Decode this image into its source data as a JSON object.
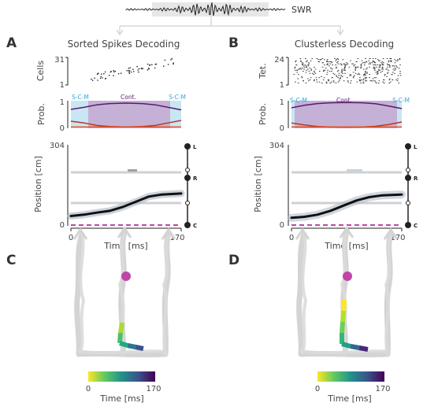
{
  "swr": {
    "label": "SWR"
  },
  "panels": {
    "A": {
      "letter": "A",
      "title": "Sorted Spikes Decoding",
      "raster_ylabel": "Cells",
      "raster_yticks": [
        "31",
        "1"
      ]
    },
    "B": {
      "letter": "B",
      "title": "Clusterless Decoding",
      "raster_ylabel": "Tet.",
      "raster_yticks": [
        "24",
        "1"
      ]
    },
    "C": {
      "letter": "C"
    },
    "D": {
      "letter": "D"
    }
  },
  "prob": {
    "ylabel": "Prob.",
    "yticks": [
      "1",
      "0"
    ],
    "state_labels": {
      "left": "S-C-M",
      "mid": "Cont.",
      "right": "S-C-M"
    }
  },
  "position": {
    "ylabel": "Position [cm]",
    "yticks": [
      "304",
      "0"
    ],
    "xlabel": "Time [ms]",
    "xticks": [
      "0",
      "170"
    ],
    "track_nodes": [
      "L",
      "R",
      "C"
    ]
  },
  "colorbar": {
    "ticks": [
      "0",
      "170"
    ],
    "label": "Time [ms]",
    "colormap": "viridis"
  },
  "colors": {
    "continuous": "#5a1a6e",
    "continuous_fill": "#c5b1d6",
    "fragmented": "#b03a2e",
    "stationary": "#e8501e",
    "scm_fill": "#c9e6f3",
    "scm_text": "#33a8d8",
    "magenta": "#c045a8",
    "track": "#d4d4d4"
  },
  "chart_data": [
    {
      "type": "line",
      "panel": "A",
      "xlabel": "Time [ms]",
      "ylabel": "Prob.",
      "xlim": [
        0,
        170
      ],
      "ylim": [
        0,
        1
      ],
      "series": [
        {
          "x": [
            0,
            20,
            40,
            60,
            85,
            110,
            130,
            150,
            170
          ],
          "values": [
            0.72,
            0.8,
            0.9,
            0.95,
            0.97,
            0.95,
            0.9,
            0.8,
            0.7
          ]
        },
        {
          "x": [
            0,
            20,
            40,
            60,
            85,
            110,
            130,
            150,
            170
          ],
          "values": [
            0.25,
            0.18,
            0.08,
            0.04,
            0.02,
            0.04,
            0.08,
            0.18,
            0.28
          ]
        },
        {
          "x": [
            0,
            170
          ],
          "values": [
            0.02,
            0.02
          ]
        }
      ]
    },
    {
      "type": "line",
      "panel": "B",
      "xlabel": "Time [ms]",
      "ylabel": "Prob.",
      "xlim": [
        0,
        170
      ],
      "ylim": [
        0,
        1
      ],
      "series": [
        {
          "x": [
            0,
            20,
            40,
            60,
            85,
            110,
            130,
            150,
            170
          ],
          "values": [
            0.78,
            0.88,
            0.95,
            0.98,
            0.99,
            0.98,
            0.94,
            0.85,
            0.75
          ]
        },
        {
          "x": [
            0,
            20,
            40,
            60,
            85,
            110,
            130,
            150,
            170
          ],
          "values": [
            0.18,
            0.1,
            0.04,
            0.02,
            0.01,
            0.02,
            0.05,
            0.12,
            0.22
          ]
        },
        {
          "x": [
            0,
            170
          ],
          "values": [
            0.02,
            0.02
          ]
        }
      ]
    },
    {
      "type": "line",
      "panel": "A",
      "xlabel": "Time [ms]",
      "ylabel": "Position [cm]",
      "xlim": [
        0,
        170
      ],
      "ylim": [
        0,
        304
      ],
      "series": [
        {
          "x": [
            0,
            20,
            40,
            60,
            80,
            100,
            120,
            140,
            170
          ],
          "values": [
            35,
            40,
            48,
            55,
            70,
            90,
            110,
            118,
            122
          ]
        }
      ]
    },
    {
      "type": "line",
      "panel": "B",
      "xlabel": "Time [ms]",
      "ylabel": "Position [cm]",
      "xlim": [
        0,
        170
      ],
      "ylim": [
        0,
        304
      ],
      "series": [
        {
          "x": [
            0,
            20,
            40,
            60,
            80,
            100,
            120,
            140,
            170
          ],
          "values": [
            28,
            32,
            40,
            55,
            75,
            95,
            108,
            115,
            118
          ]
        }
      ]
    }
  ]
}
